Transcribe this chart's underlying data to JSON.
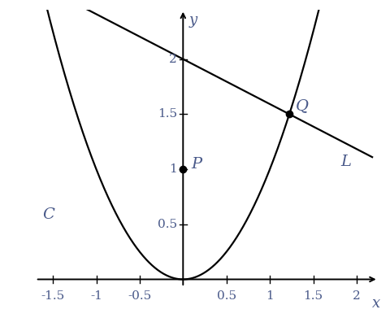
{
  "xlim": [
    -1.75,
    2.25
  ],
  "ylim": [
    -0.12,
    2.45
  ],
  "parabola_label": "C",
  "line_label": "L",
  "point_P": [
    0,
    1
  ],
  "point_P_label": "P",
  "point_Q": [
    1.224744871391589,
    1.5
  ],
  "point_Q_label": "Q",
  "line_y_intercept": 2.0,
  "line_slope": -0.4082482904638631,
  "xticks": [
    -1.5,
    -1,
    -0.5,
    0.5,
    1,
    1.5,
    2
  ],
  "yticks": [
    0.5,
    1,
    1.5,
    2
  ],
  "xlabel": "x",
  "ylabel": "y",
  "background_color": "#ffffff",
  "curve_color": "#000000",
  "line_color": "#000000",
  "point_color": "#000000",
  "label_color": "#4a5a8a",
  "tick_color": "#4a5a8a",
  "axis_color": "#000000",
  "font_family": "serif",
  "tick_fontsize": 11,
  "label_fontsize": 13,
  "point_label_fontsize": 14,
  "curve_label_fontsize": 14
}
